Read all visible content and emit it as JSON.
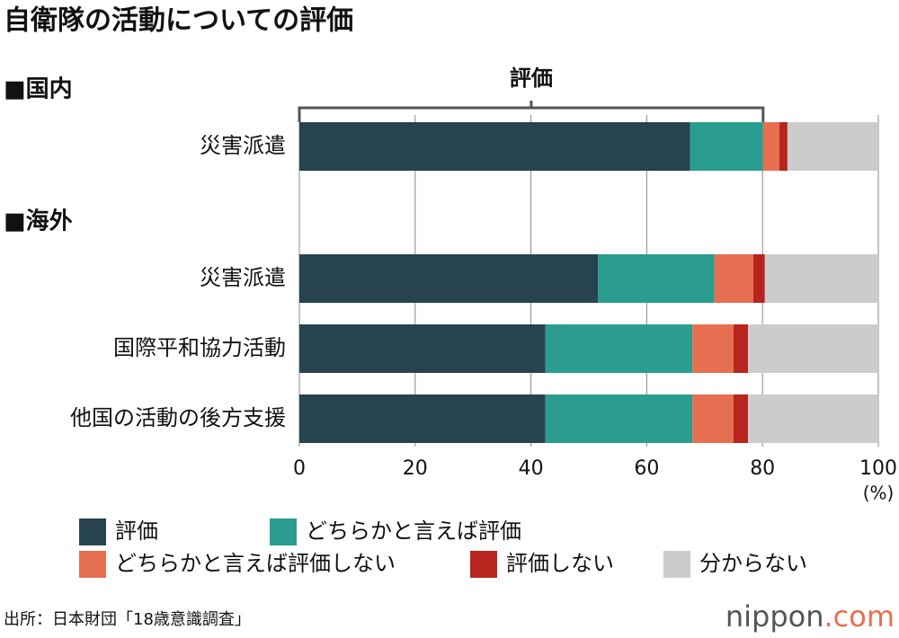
{
  "chart_data": {
    "type": "stacked-bar-horizontal",
    "title": "自衛隊の活動についての評価",
    "groups": [
      {
        "label": "■国内",
        "categories": [
          "災害派遣"
        ]
      },
      {
        "label": "■海外",
        "categories": [
          "災害派遣",
          "国際平和協力活動",
          "他国の活動の後方支援"
        ]
      }
    ],
    "series": [
      {
        "name": "評価",
        "color": "#27434f",
        "values": [
          67.5,
          51.6,
          42.5,
          42.5
        ]
      },
      {
        "name": "どちらかと言えば評価",
        "color": "#2a9d8f",
        "values": [
          12.6,
          20.1,
          25.4,
          25.4
        ]
      },
      {
        "name": "どちらかと言えば評価しない",
        "color": "#e76f51",
        "values": [
          2.8,
          6.7,
          7.1,
          7.1
        ]
      },
      {
        "name": "評価しない",
        "color": "#b8251e",
        "values": [
          1.4,
          2.0,
          2.5,
          2.5
        ]
      },
      {
        "name": "分からない",
        "color": "#cccccc",
        "values": [
          15.7,
          19.6,
          22.5,
          22.5
        ]
      }
    ],
    "annotation": "評価",
    "xlim": [
      0,
      100
    ],
    "xticks": [
      0,
      20,
      40,
      60,
      80,
      100
    ],
    "xlabel": "(%)",
    "grid": true,
    "source": "出所：日本財団「18歳意識調査」",
    "logo": {
      "name": "nippon",
      "suffix": ".com"
    }
  }
}
